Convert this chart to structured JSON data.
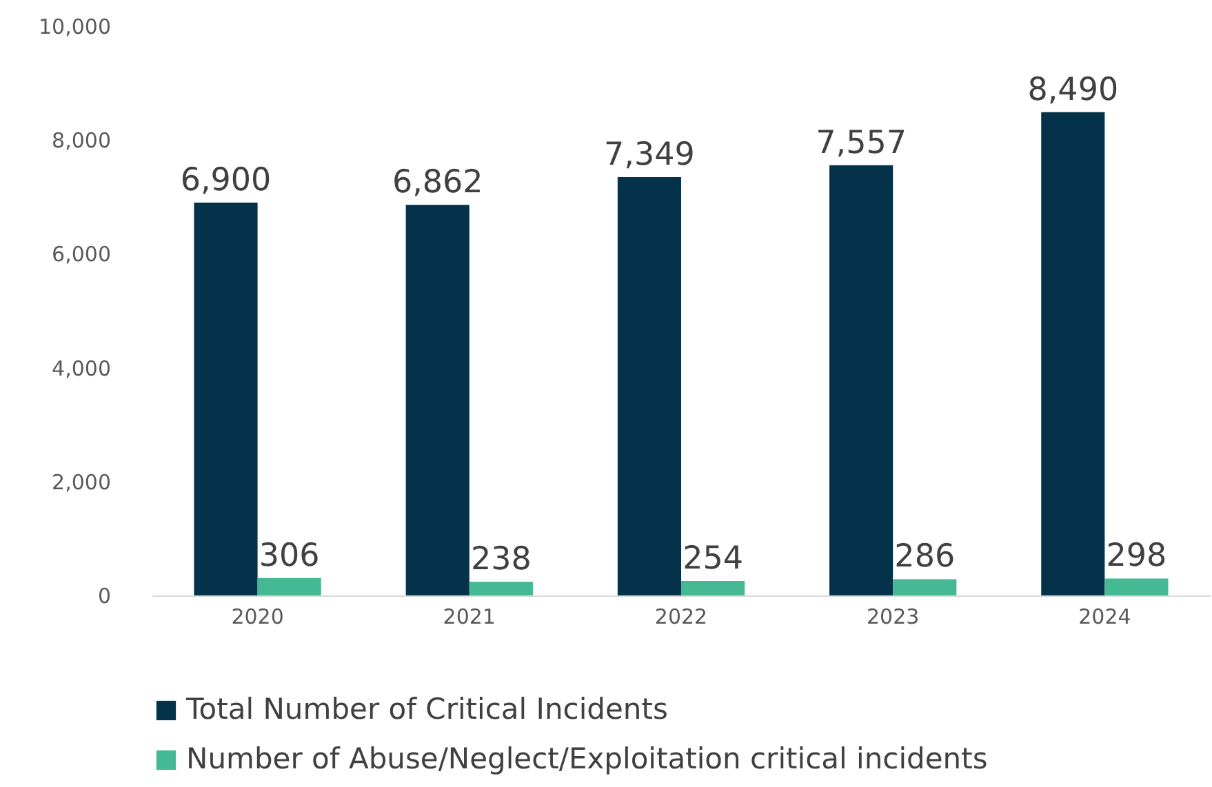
{
  "chart_data": {
    "type": "bar",
    "categories": [
      "2020",
      "2021",
      "2022",
      "2023",
      "2024"
    ],
    "series": [
      {
        "name": "Total Number of Critical Incidents",
        "color": "#04324a",
        "values": [
          6900,
          6862,
          7349,
          7557,
          8490
        ],
        "value_labels": [
          "6,900",
          "6,862",
          "7,349",
          "7,557",
          "8,490"
        ]
      },
      {
        "name": "Number of Abuse/Neglect/Exploitation critical incidents",
        "color": "#45b993",
        "values": [
          306,
          238,
          254,
          286,
          298
        ]
      }
    ],
    "ylim": [
      0,
      10000
    ],
    "yticks": [
      0,
      {
        "value": 2000,
        "label": "2,000"
      },
      {
        "value": 4000,
        "label": "4,000"
      },
      {
        "value": 6000,
        "label": "6,000"
      },
      {
        "value": 8000,
        "label": "8,000"
      },
      {
        "value": 10000,
        "label": "10,000"
      }
    ],
    "grid": false,
    "legend": "bottom",
    "data_labels": true
  }
}
